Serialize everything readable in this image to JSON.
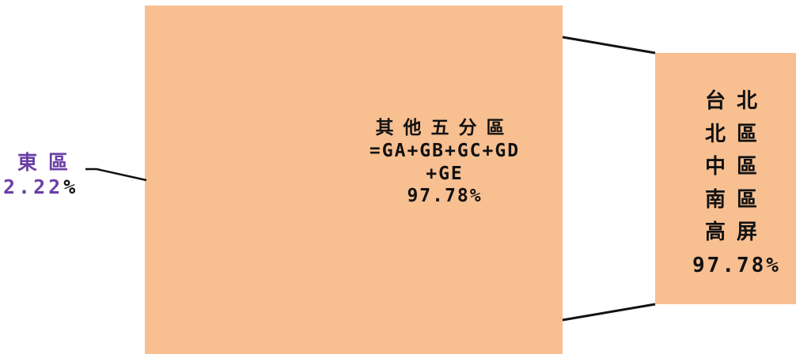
{
  "chart_data": {
    "type": "bar-of-pie",
    "segments": [
      {
        "label_lines": [
          "其他五分區",
          "=GA+GB+GC+GD",
          "+GE"
        ],
        "value_label": "97.78%",
        "value": 97.78
      },
      {
        "label_lines": [
          "東區"
        ],
        "value_label": "2.22",
        "value_unit": "%",
        "value": 2.22
      }
    ],
    "breakdown": {
      "label_lines": [
        "台北",
        "北區",
        "中區",
        "南區",
        "高屏"
      ],
      "value_label": "97.78%",
      "value": 97.78
    },
    "colors": {
      "fill": "#F8BF91",
      "connector": "#111111",
      "east_label": "#6A3FA6"
    }
  }
}
